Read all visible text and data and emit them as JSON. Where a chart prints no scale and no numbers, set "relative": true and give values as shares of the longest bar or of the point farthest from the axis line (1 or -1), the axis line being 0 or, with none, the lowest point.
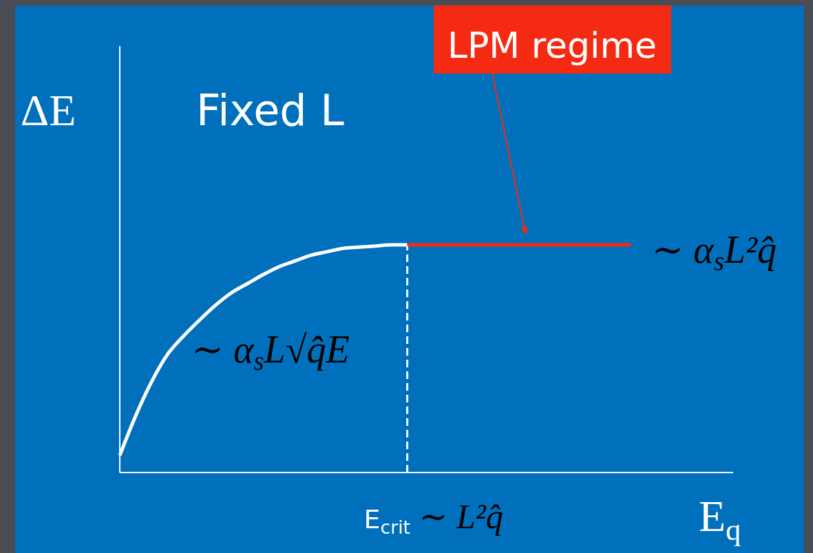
{
  "chart_data": {
    "type": "line",
    "title": "Fixed L",
    "xlabel": "E$_{q}$",
    "ylabel": "ΔE",
    "relative": true,
    "categories": [
      null,
      null,
      null,
      null,
      null,
      null,
      null,
      null,
      null,
      null,
      null,
      null,
      null,
      null,
      null,
      null,
      null,
      null,
      null,
      null,
      null,
      null,
      null,
      null,
      null,
      null,
      null,
      null,
      null,
      null,
      null,
      null,
      null,
      null,
      null,
      null,
      null,
      null,
      null
    ],
    "series": [
      {
        "color": "#ffffff",
        "values": [
          0.075,
          0.25,
          0.4,
          0.52,
          0.6,
          0.67,
          0.735,
          0.79,
          0.83,
          0.87,
          0.905,
          0.93,
          0.955,
          0.97,
          0.985,
          0.99,
          0.995,
          1,
          1,
          null,
          null,
          null,
          null,
          null,
          null,
          null,
          null,
          null,
          null,
          null,
          null,
          null,
          null,
          null,
          null,
          null,
          null,
          null,
          null
        ]
      },
      {
        "color": "#f52a12",
        "values": [
          null,
          null,
          null,
          null,
          null,
          null,
          null,
          null,
          null,
          null,
          null,
          null,
          null,
          null,
          null,
          null,
          null,
          null,
          1,
          1,
          1,
          1,
          1,
          1,
          1,
          1,
          1,
          1,
          1,
          1,
          1,
          1,
          1,
          null,
          null,
          null,
          null,
          null,
          null
        ]
      }
    ],
    "annotations": [
      "LPM regime",
      "∼ α$_{s}$L√q̂E",
      "∼ α$_{s}$L²q̂",
      "E$_{crit}$ ∼ L²q̂"
    ]
  }
}
